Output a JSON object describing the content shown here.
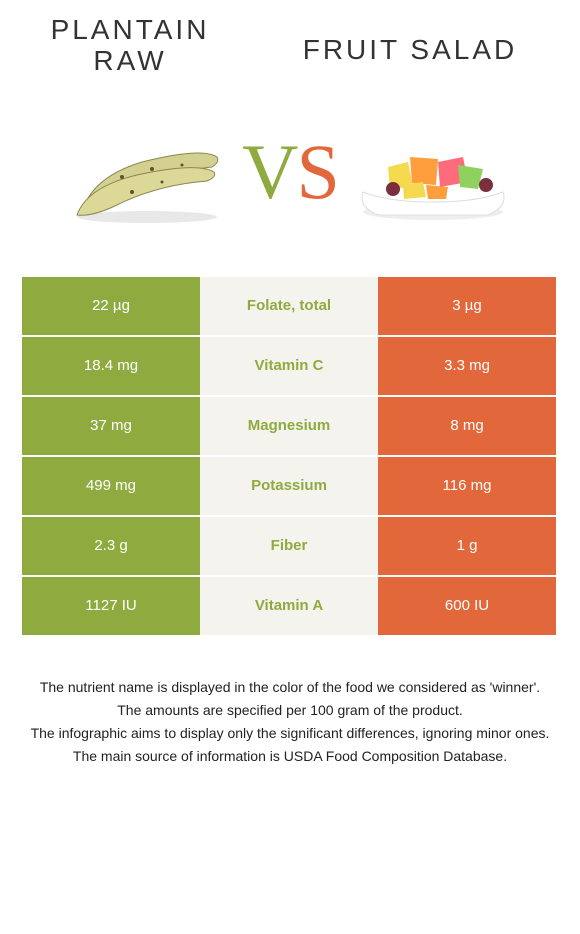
{
  "header": {
    "left_line1": "PLANTAIN",
    "left_line2": "RAW",
    "right": "FRUIT SALAD"
  },
  "vs": {
    "v": "V",
    "s": "S"
  },
  "colors": {
    "green": "#8fab3f",
    "orange": "#e2673b",
    "mid_bg": "#f5f3ee"
  },
  "rows": [
    {
      "left": "22 µg",
      "label": "Folate, total",
      "right": "3 µg",
      "label_color": "#8fab3f"
    },
    {
      "left": "18.4 mg",
      "label": "Vitamin C",
      "right": "3.3 mg",
      "label_color": "#8fab3f"
    },
    {
      "left": "37 mg",
      "label": "Magnesium",
      "right": "8 mg",
      "label_color": "#8fab3f"
    },
    {
      "left": "499 mg",
      "label": "Potassium",
      "right": "116 mg",
      "label_color": "#8fab3f"
    },
    {
      "left": "2.3 g",
      "label": "Fiber",
      "right": "1 g",
      "label_color": "#8fab3f"
    },
    {
      "left": "1127 IU",
      "label": "Vitamin A",
      "right": "600 IU",
      "label_color": "#8fab3f"
    }
  ],
  "footer": {
    "l1": "The nutrient name is displayed in the color of the food we considered as 'winner'.",
    "l2": "The amounts are specified per 100 gram of the product.",
    "l3": "The infographic aims to display only the significant differences, ignoring minor ones.",
    "l4": "The main source of information is USDA Food Composition Database."
  }
}
